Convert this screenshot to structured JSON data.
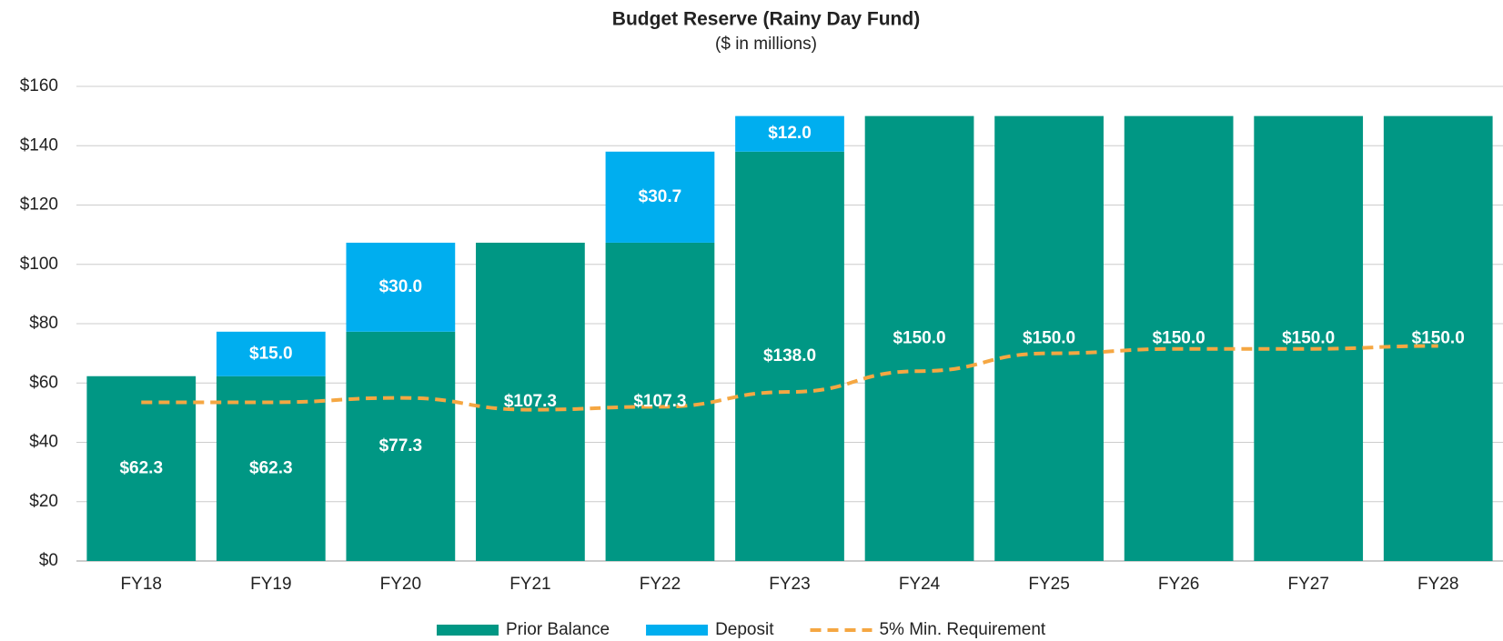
{
  "chart_data": {
    "type": "bar",
    "stacked": true,
    "title": "Budget Reserve (Rainy Day Fund)",
    "subtitle": "($ in millions)",
    "categories": [
      "FY18",
      "FY19",
      "FY20",
      "FY21",
      "FY22",
      "FY23",
      "FY24",
      "FY25",
      "FY26",
      "FY27",
      "FY28"
    ],
    "series": [
      {
        "name": "Prior Balance",
        "type": "bar",
        "color": "#009784",
        "values": [
          62.3,
          62.3,
          77.3,
          107.3,
          107.3,
          138.0,
          150.0,
          150.0,
          150.0,
          150.0,
          150.0
        ],
        "value_labels": [
          "$62.3",
          "$62.3",
          "$77.3",
          "$107.3",
          "$107.3",
          "$138.0",
          "$150.0",
          "$150.0",
          "$150.0",
          "$150.0",
          "$150.0"
        ]
      },
      {
        "name": "Deposit",
        "type": "bar",
        "color": "#00aeef",
        "values": [
          null,
          15.0,
          30.0,
          null,
          30.7,
          12.0,
          null,
          null,
          null,
          null,
          null
        ],
        "value_labels": [
          null,
          "$15.0",
          "$30.0",
          null,
          "$30.7",
          "$12.0",
          null,
          null,
          null,
          null,
          null
        ]
      },
      {
        "name": "5% Min. Requirement",
        "type": "line",
        "dashed": true,
        "color": "#f5a742",
        "values": [
          53.5,
          53.5,
          55,
          51,
          52,
          57,
          64,
          70,
          71.5,
          71.5,
          72.5
        ]
      }
    ],
    "ylim": [
      0,
      160
    ],
    "yticks": [
      {
        "value": 0,
        "label": "$0"
      },
      {
        "value": 20,
        "label": "$20"
      },
      {
        "value": 40,
        "label": "$40"
      },
      {
        "value": 60,
        "label": "$60"
      },
      {
        "value": 80,
        "label": "$80"
      },
      {
        "value": 100,
        "label": "$100"
      },
      {
        "value": 120,
        "label": "$120"
      },
      {
        "value": 140,
        "label": "$140"
      },
      {
        "value": 160,
        "label": "$160"
      }
    ],
    "grid": true,
    "legend": "bottom"
  }
}
